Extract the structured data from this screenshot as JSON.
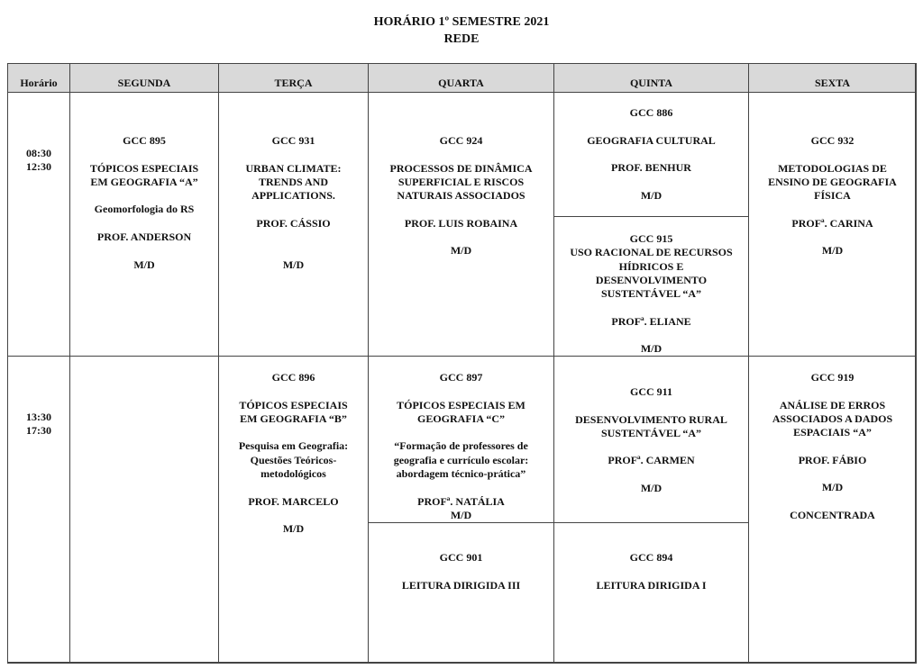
{
  "title": "HORÁRIO 1º SEMESTRE 2021",
  "subtitle": "REDE",
  "headers": [
    "Horário",
    "SEGUNDA",
    "TERÇA",
    "QUARTA",
    "QUINTA",
    "SEXTA"
  ],
  "times": [
    [
      "08:30",
      "12:30"
    ],
    [
      "13:30",
      "17:30"
    ]
  ],
  "cells": {
    "seg1": [
      "GCC 895",
      "",
      "TÓPICOS ESPECIAIS",
      "EM GEOGRAFIA “A”",
      "",
      "Geomorfologia do RS",
      "",
      "PROF. ANDERSON",
      "",
      "M/D"
    ],
    "ter1": [
      "GCC 931",
      "",
      "URBAN CLIMATE:",
      "TRENDS AND",
      "APPLICATIONS.",
      "",
      "PROF. CÁSSIO",
      "",
      "",
      "M/D"
    ],
    "qua1": [
      "GCC 924",
      "",
      "PROCESSOS DE DINÂMICA",
      "SUPERFICIAL E RISCOS",
      "NATURAIS ASSOCIADOS",
      "",
      "PROF. LUIS ROBAINA",
      "",
      "M/D"
    ],
    "qui1a": [
      "GCC 886",
      "",
      "GEOGRAFIA CULTURAL",
      "",
      "PROF. BENHUR",
      "",
      "M/D"
    ],
    "qui1b": [
      "GCC 915",
      "USO RACIONAL DE RECURSOS",
      "HÍDRICOS E",
      "DESENVOLVIMENTO",
      "SUSTENTÁVEL “A”",
      "",
      "PROFª. ELIANE",
      "",
      "M/D"
    ],
    "sex1": [
      "GCC 932",
      "",
      "METODOLOGIAS DE",
      "ENSINO DE GEOGRAFIA",
      "FÍSICA",
      "",
      "PROFª. CARINA",
      "",
      "M/D"
    ],
    "seg2": [],
    "ter2": [
      "GCC 896",
      "",
      "TÓPICOS ESPECIAIS",
      "EM GEOGRAFIA “B”",
      "",
      "Pesquisa em Geografia:",
      "Questões Teóricos-",
      "metodológicos",
      "",
      "PROF. MARCELO",
      "",
      "M/D"
    ],
    "qua2a": [
      "GCC 897",
      "",
      "TÓPICOS ESPECIAIS EM",
      "GEOGRAFIA “C”",
      "",
      "“Formação de professores de",
      "geografia e currículo escolar:",
      "abordagem técnico-prática”",
      "",
      "PROFª. NATÁLIA",
      "M/D"
    ],
    "qua2b": [
      "GCC 901",
      "",
      "LEITURA DIRIGIDA III"
    ],
    "qui2a": [
      "GCC 911",
      "",
      "DESENVOLVIMENTO RURAL",
      "SUSTENTÁVEL “A”",
      "",
      "PROFª. CARMEN",
      "",
      "M/D"
    ],
    "qui2b": [
      "GCC 894",
      "",
      "LEITURA DIRIGIDA I"
    ],
    "sex2": [
      "GCC 919",
      "",
      "ANÁLISE DE ERROS",
      "ASSOCIADOS A DADOS",
      "ESPACIAIS “A”",
      "",
      "PROF. FÁBIO",
      "",
      "M/D",
      "",
      "CONCENTRADA"
    ]
  }
}
